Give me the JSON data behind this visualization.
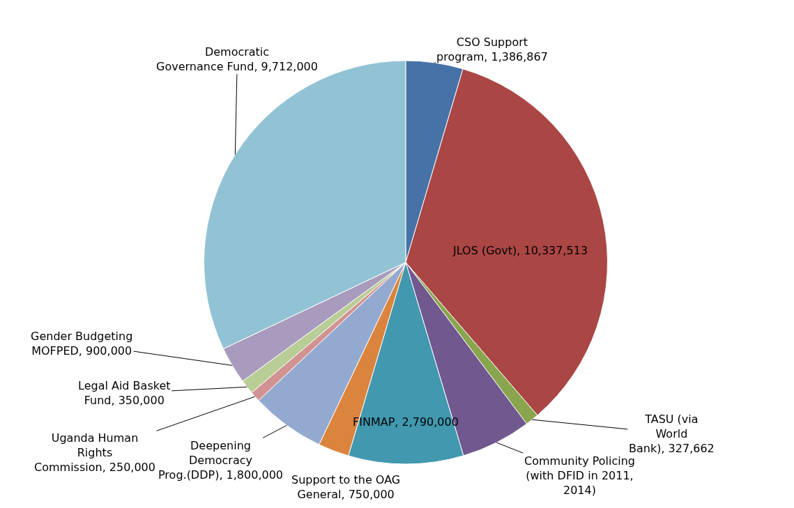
{
  "chart_data": {
    "type": "pie",
    "categories": [
      "CSO Support program",
      "JLOS (Govt)",
      "TASU (via World Bank)",
      "Community Policing (with DFID in 2011, 2014)",
      "FINMAP",
      "Support to the OAG General",
      "Deepening Democracy Prog.(DDP)",
      "Uganda Human Rights Commission",
      "Legal Aid Basket Fund",
      "Gender Budgeting MOFPED",
      "Democratic Governance Fund"
    ],
    "values": [
      1386867,
      10337513,
      327662,
      1700000,
      2790000,
      750000,
      1800000,
      250000,
      350000,
      900000,
      9712000
    ],
    "value_labels": [
      "1,386,867",
      "10,337,513",
      "327,662",
      null,
      "2,790,000",
      "750,000",
      "1,800,000",
      "250,000",
      "350,000",
      "900,000",
      "9,712,000"
    ],
    "colors": [
      "#4672a8",
      "#aa4644",
      "#89a54e",
      "#71588f",
      "#4198af",
      "#db843d",
      "#93a9cf",
      "#d19392",
      "#b9cd96",
      "#a99bbd",
      "#92c3d5"
    ],
    "legend": false
  }
}
